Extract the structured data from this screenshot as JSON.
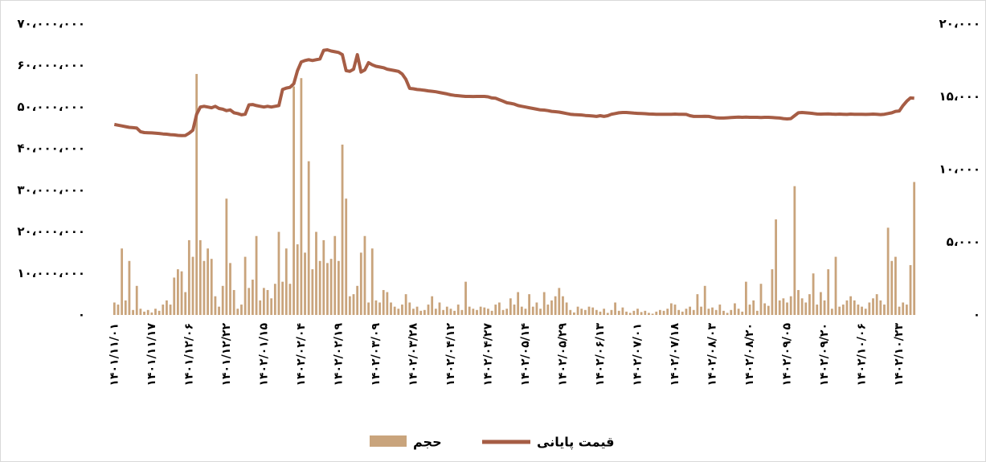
{
  "chart_data": {
    "type": "combo",
    "categories": [
      "۱۴۰۱/۱۱/۰۱",
      null,
      null,
      null,
      null,
      null,
      null,
      null,
      null,
      null,
      "۱۴۰۱/۱۱/۱۷",
      null,
      null,
      null,
      null,
      null,
      null,
      null,
      null,
      null,
      "۱۴۰۱/۱۲/۰۶",
      null,
      null,
      null,
      null,
      null,
      null,
      null,
      null,
      null,
      "۱۴۰۱/۱۲/۲۲",
      null,
      null,
      null,
      null,
      null,
      null,
      null,
      null,
      null,
      "۱۴۰۲/۰۱/۱۵",
      null,
      null,
      null,
      null,
      null,
      null,
      null,
      null,
      null,
      "۱۴۰۲/۰۲/۰۴",
      null,
      null,
      null,
      null,
      null,
      null,
      null,
      null,
      null,
      "۱۴۰۲/۰۲/۱۹",
      null,
      null,
      null,
      null,
      null,
      null,
      null,
      null,
      null,
      "۱۴۰۲/۰۳/۰۹",
      null,
      null,
      null,
      null,
      null,
      null,
      null,
      null,
      null,
      "۱۴۰۲/۰۳/۲۸",
      null,
      null,
      null,
      null,
      null,
      null,
      null,
      null,
      null,
      "۱۴۰۲/۰۴/۱۲",
      null,
      null,
      null,
      null,
      null,
      null,
      null,
      null,
      null,
      "۱۴۰۲/۰۴/۲۷",
      null,
      null,
      null,
      null,
      null,
      null,
      null,
      null,
      null,
      "۱۴۰۲/۰۵/۱۴",
      null,
      null,
      null,
      null,
      null,
      null,
      null,
      null,
      null,
      "۱۴۰۲/۰۵/۲۹",
      null,
      null,
      null,
      null,
      null,
      null,
      null,
      null,
      null,
      "۱۴۰۲/۰۶/۱۳",
      null,
      null,
      null,
      null,
      null,
      null,
      null,
      null,
      null,
      "۱۴۰۲/۰۷/۰۱",
      null,
      null,
      null,
      null,
      null,
      null,
      null,
      null,
      null,
      "۱۴۰۲/۰۷/۱۸",
      null,
      null,
      null,
      null,
      null,
      null,
      null,
      null,
      null,
      "۱۴۰۲/۰۸/۰۳",
      null,
      null,
      null,
      null,
      null,
      null,
      null,
      null,
      null,
      "۱۴۰۲/۰۸/۲۰",
      null,
      null,
      null,
      null,
      null,
      null,
      null,
      null,
      null,
      "۱۴۰۲/۰۹/۰۵",
      null,
      null,
      null,
      null,
      null,
      null,
      null,
      null,
      null,
      "۱۴۰۲/۰۹/۲۰",
      null,
      null,
      null,
      null,
      null,
      null,
      null,
      null,
      null,
      "۱۴۰۲/۱۰/۰۶",
      null,
      null,
      null,
      null,
      null,
      null,
      null,
      null,
      null,
      "۱۴۰۲/۱۰/۲۳",
      null,
      null,
      null,
      null
    ],
    "series": [
      {
        "name": "حجم",
        "type": "bar",
        "color": "#c9a47c",
        "values": [
          3000000,
          2500000,
          16000000,
          3500000,
          13000000,
          1200000,
          7000000,
          1500000,
          800000,
          1200000,
          600000,
          1500000,
          1000000,
          2500000,
          3500000,
          2500000,
          9000000,
          11000000,
          10500000,
          5500000,
          18000000,
          14000000,
          58000000,
          18000000,
          13000000,
          16000000,
          13500000,
          4500000,
          2000000,
          7000000,
          28000000,
          12500000,
          6000000,
          1500000,
          2500000,
          14000000,
          6500000,
          8500000,
          19000000,
          3500000,
          6500000,
          6000000,
          4000000,
          7500000,
          20000000,
          8000000,
          16000000,
          7500000,
          55000000,
          17000000,
          57000000,
          15000000,
          37000000,
          11000000,
          20000000,
          13000000,
          18000000,
          12500000,
          13500000,
          19000000,
          13000000,
          41000000,
          28000000,
          4500000,
          5000000,
          7000000,
          15000000,
          19000000,
          3000000,
          16000000,
          3500000,
          3000000,
          6000000,
          5500000,
          3000000,
          2000000,
          1500000,
          2500000,
          5000000,
          3000000,
          1500000,
          2000000,
          1000000,
          1200000,
          2500000,
          4500000,
          1500000,
          3000000,
          1200000,
          2000000,
          1500000,
          1000000,
          2500000,
          1200000,
          8000000,
          2000000,
          1500000,
          1200000,
          2000000,
          1800000,
          1500000,
          1000000,
          2500000,
          3000000,
          1200000,
          1500000,
          4000000,
          2500000,
          5500000,
          2000000,
          1500000,
          5000000,
          2000000,
          3000000,
          1500000,
          5500000,
          2500000,
          3500000,
          4500000,
          6500000,
          4500000,
          3000000,
          1200000,
          600000,
          2000000,
          1500000,
          1200000,
          2000000,
          1800000,
          1200000,
          800000,
          1500000,
          500000,
          1200000,
          3000000,
          1000000,
          1800000,
          800000,
          500000,
          1000000,
          1500000,
          700000,
          1000000,
          500000,
          300000,
          800000,
          1200000,
          1000000,
          1500000,
          2800000,
          2500000,
          1200000,
          800000,
          1500000,
          2000000,
          1200000,
          5000000,
          2000000,
          7000000,
          1500000,
          1800000,
          1200000,
          2500000,
          1000000,
          500000,
          1200000,
          2800000,
          1500000,
          800000,
          8000000,
          2500000,
          3500000,
          1000000,
          7500000,
          2800000,
          2200000,
          11000000,
          23000000,
          3500000,
          4000000,
          3000000,
          4500000,
          31000000,
          6000000,
          4000000,
          3000000,
          5000000,
          10000000,
          2500000,
          5500000,
          3500000,
          11000000,
          1500000,
          14000000,
          2000000,
          2500000,
          3500000,
          4500000,
          3500000,
          2500000,
          2000000,
          1500000,
          3000000,
          4000000,
          5000000,
          3500000,
          2500000,
          21000000,
          13000000,
          14000000,
          2000000,
          3000000,
          2500000,
          12000000,
          32000000
        ]
      },
      {
        "name": "قیمت پایانی",
        "type": "line",
        "axis": "y2",
        "color": "#a65d45",
        "values": [
          13100,
          13050,
          13000,
          12950,
          12900,
          12880,
          12850,
          12600,
          12540,
          12530,
          12520,
          12500,
          12480,
          12450,
          12430,
          12400,
          12380,
          12350,
          12330,
          12340,
          12500,
          12700,
          13800,
          14300,
          14350,
          14300,
          14250,
          14350,
          14200,
          14150,
          14050,
          14100,
          13900,
          13850,
          13760,
          13800,
          14450,
          14470,
          14400,
          14350,
          14300,
          14350,
          14300,
          14350,
          14400,
          15500,
          15600,
          15650,
          15900,
          16800,
          17400,
          17500,
          17550,
          17500,
          17550,
          17600,
          18200,
          18230,
          18150,
          18100,
          18050,
          17900,
          16800,
          16750,
          16900,
          17900,
          16700,
          16850,
          17350,
          17200,
          17100,
          17050,
          17000,
          16900,
          16850,
          16800,
          16750,
          16570,
          16200,
          15580,
          15550,
          15500,
          15480,
          15450,
          15410,
          15380,
          15350,
          15300,
          15250,
          15200,
          15140,
          15100,
          15080,
          15050,
          15030,
          15030,
          15020,
          15030,
          15030,
          15030,
          15000,
          14920,
          14900,
          14800,
          14700,
          14590,
          14550,
          14500,
          14400,
          14350,
          14300,
          14250,
          14200,
          14150,
          14100,
          14090,
          14050,
          14000,
          13980,
          13950,
          13900,
          13850,
          13800,
          13780,
          13760,
          13750,
          13720,
          13700,
          13680,
          13650,
          13700,
          13650,
          13700,
          13800,
          13850,
          13900,
          13920,
          13920,
          13900,
          13880,
          13860,
          13850,
          13840,
          13820,
          13810,
          13800,
          13800,
          13800,
          13800,
          13800,
          13810,
          13800,
          13800,
          13790,
          13700,
          13650,
          13650,
          13650,
          13660,
          13650,
          13600,
          13560,
          13540,
          13540,
          13560,
          13580,
          13590,
          13600,
          13590,
          13600,
          13590,
          13590,
          13590,
          13580,
          13590,
          13590,
          13580,
          13560,
          13540,
          13500,
          13480,
          13500,
          13700,
          13900,
          13920,
          13900,
          13880,
          13850,
          13820,
          13810,
          13820,
          13830,
          13810,
          13800,
          13810,
          13800,
          13790,
          13810,
          13800,
          13800,
          13800,
          13790,
          13800,
          13810,
          13800,
          13780,
          13800,
          13850,
          13900,
          14000,
          14030,
          14400,
          14700,
          14920,
          14900
        ]
      }
    ],
    "ylim": [
      0,
      70000000
    ],
    "yticks": [
      {
        "value": 0,
        "label": "۰"
      },
      {
        "value": 10000000,
        "label": "۱۰،۰۰۰،۰۰۰"
      },
      {
        "value": 20000000,
        "label": "۲۰،۰۰۰،۰۰۰"
      },
      {
        "value": 30000000,
        "label": "۳۰،۰۰۰،۰۰۰"
      },
      {
        "value": 40000000,
        "label": "۴۰،۰۰۰،۰۰۰"
      },
      {
        "value": 50000000,
        "label": "۵۰،۰۰۰،۰۰۰"
      },
      {
        "value": 60000000,
        "label": "۶۰،۰۰۰،۰۰۰"
      },
      {
        "value": 70000000,
        "label": "۷۰،۰۰۰،۰۰۰"
      }
    ],
    "y2lim": [
      0,
      20000
    ],
    "y2ticks": [
      {
        "value": 0,
        "label": "۰"
      },
      {
        "value": 5000,
        "label": "۵،۰۰۰"
      },
      {
        "value": 10000,
        "label": "۱۰،۰۰۰"
      },
      {
        "value": 15000,
        "label": "۱۵،۰۰۰"
      },
      {
        "value": 20000,
        "label": "۲۰،۰۰۰"
      }
    ],
    "grid": false,
    "legend": "bottom"
  }
}
